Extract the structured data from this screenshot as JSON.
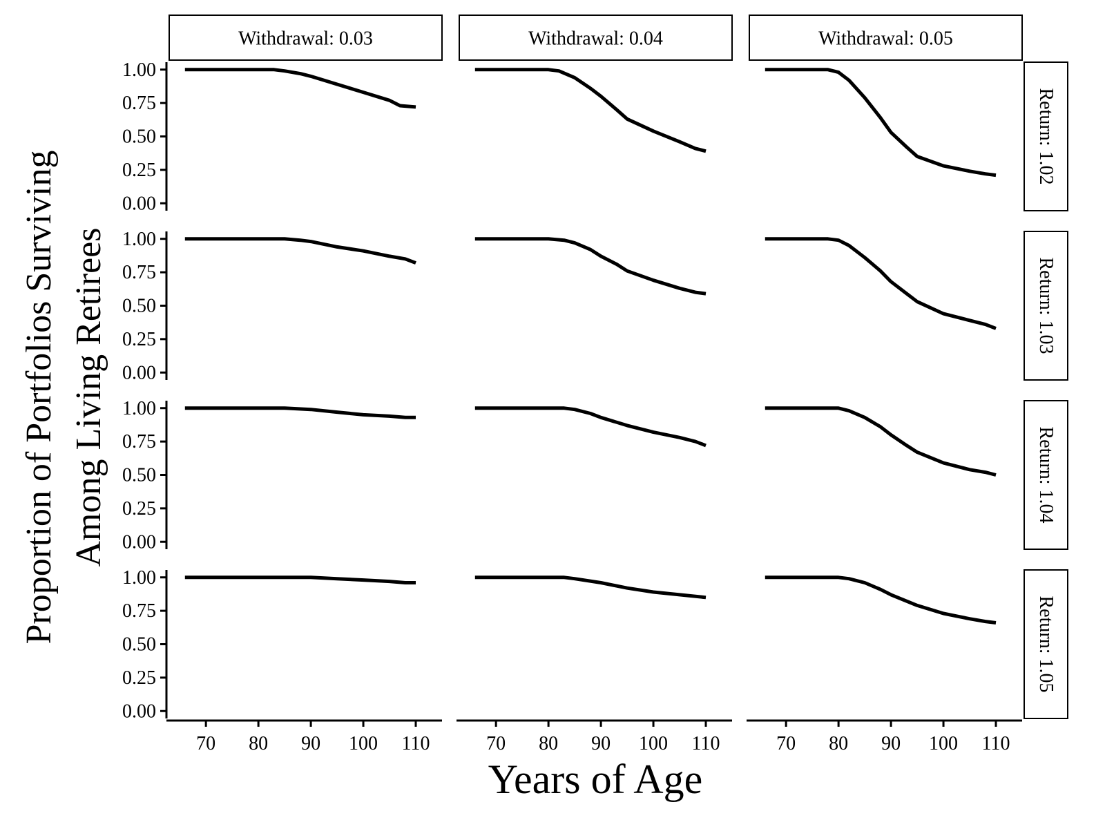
{
  "chart_data": {
    "type": "line",
    "layout": "facet-grid",
    "xlabel": "Years of Age",
    "ylabel_lines": [
      "Proportion of Portfolios Surviving",
      "Among Living Retirees"
    ],
    "xlim": [
      63,
      115
    ],
    "ylim": [
      0,
      1
    ],
    "x_ticks": [
      70,
      80,
      90,
      100,
      110
    ],
    "y_ticks": [
      0,
      0.25,
      0.5,
      0.75,
      1
    ],
    "x_tick_labels": [
      "70",
      "80",
      "90",
      "100",
      "110"
    ],
    "y_tick_labels": [
      "0.00",
      "0.25",
      "0.50",
      "0.75",
      "1.00"
    ],
    "column_facets": [
      "Withdrawal: 0.03",
      "Withdrawal: 0.04",
      "Withdrawal: 0.05"
    ],
    "row_facets": [
      "Return: 1.02",
      "Return: 1.03",
      "Return: 1.04",
      "Return: 1.05"
    ],
    "line_color": "#000000",
    "grid": false,
    "panels": [
      {
        "row": 0,
        "col": 0,
        "x": [
          66,
          70,
          75,
          80,
          83,
          85,
          88,
          90,
          95,
          100,
          105,
          107,
          110
        ],
        "y": [
          1.0,
          1.0,
          1.0,
          1.0,
          1.0,
          0.99,
          0.97,
          0.95,
          0.89,
          0.83,
          0.77,
          0.73,
          0.72
        ]
      },
      {
        "row": 0,
        "col": 1,
        "x": [
          66,
          70,
          75,
          80,
          82,
          85,
          88,
          90,
          93,
          95,
          100,
          105,
          108,
          110
        ],
        "y": [
          1.0,
          1.0,
          1.0,
          1.0,
          0.99,
          0.94,
          0.86,
          0.8,
          0.7,
          0.63,
          0.54,
          0.46,
          0.41,
          0.39
        ]
      },
      {
        "row": 0,
        "col": 2,
        "x": [
          66,
          70,
          75,
          78,
          80,
          82,
          85,
          88,
          90,
          93,
          95,
          100,
          105,
          108,
          110
        ],
        "y": [
          1.0,
          1.0,
          1.0,
          1.0,
          0.98,
          0.92,
          0.79,
          0.64,
          0.53,
          0.42,
          0.35,
          0.28,
          0.24,
          0.22,
          0.21
        ]
      },
      {
        "row": 1,
        "col": 0,
        "x": [
          66,
          70,
          75,
          80,
          85,
          88,
          90,
          95,
          100,
          105,
          108,
          110
        ],
        "y": [
          1.0,
          1.0,
          1.0,
          1.0,
          1.0,
          0.99,
          0.98,
          0.94,
          0.91,
          0.87,
          0.85,
          0.82
        ]
      },
      {
        "row": 1,
        "col": 1,
        "x": [
          66,
          70,
          75,
          80,
          83,
          85,
          88,
          90,
          93,
          95,
          100,
          105,
          108,
          110
        ],
        "y": [
          1.0,
          1.0,
          1.0,
          1.0,
          0.99,
          0.97,
          0.92,
          0.87,
          0.81,
          0.76,
          0.69,
          0.63,
          0.6,
          0.59
        ]
      },
      {
        "row": 1,
        "col": 2,
        "x": [
          66,
          70,
          75,
          78,
          80,
          82,
          85,
          88,
          90,
          93,
          95,
          100,
          105,
          108,
          110
        ],
        "y": [
          1.0,
          1.0,
          1.0,
          1.0,
          0.99,
          0.95,
          0.86,
          0.76,
          0.68,
          0.59,
          0.53,
          0.44,
          0.39,
          0.36,
          0.33
        ]
      },
      {
        "row": 2,
        "col": 0,
        "x": [
          66,
          70,
          75,
          80,
          85,
          90,
          95,
          100,
          105,
          108,
          110
        ],
        "y": [
          1.0,
          1.0,
          1.0,
          1.0,
          1.0,
          0.99,
          0.97,
          0.95,
          0.94,
          0.93,
          0.93
        ]
      },
      {
        "row": 2,
        "col": 1,
        "x": [
          66,
          70,
          75,
          80,
          83,
          85,
          88,
          90,
          95,
          100,
          105,
          108,
          110
        ],
        "y": [
          1.0,
          1.0,
          1.0,
          1.0,
          1.0,
          0.99,
          0.96,
          0.93,
          0.87,
          0.82,
          0.78,
          0.75,
          0.72
        ]
      },
      {
        "row": 2,
        "col": 2,
        "x": [
          66,
          70,
          75,
          78,
          80,
          82,
          85,
          88,
          90,
          93,
          95,
          100,
          105,
          108,
          110
        ],
        "y": [
          1.0,
          1.0,
          1.0,
          1.0,
          1.0,
          0.98,
          0.93,
          0.86,
          0.8,
          0.72,
          0.67,
          0.59,
          0.54,
          0.52,
          0.5
        ]
      },
      {
        "row": 3,
        "col": 0,
        "x": [
          66,
          70,
          75,
          80,
          85,
          90,
          95,
          100,
          105,
          108,
          110
        ],
        "y": [
          1.0,
          1.0,
          1.0,
          1.0,
          1.0,
          1.0,
          0.99,
          0.98,
          0.97,
          0.96,
          0.96
        ]
      },
      {
        "row": 3,
        "col": 1,
        "x": [
          66,
          70,
          75,
          80,
          83,
          85,
          90,
          95,
          100,
          105,
          110
        ],
        "y": [
          1.0,
          1.0,
          1.0,
          1.0,
          1.0,
          0.99,
          0.96,
          0.92,
          0.89,
          0.87,
          0.85
        ]
      },
      {
        "row": 3,
        "col": 2,
        "x": [
          66,
          70,
          75,
          78,
          80,
          82,
          85,
          88,
          90,
          95,
          100,
          105,
          108,
          110
        ],
        "y": [
          1.0,
          1.0,
          1.0,
          1.0,
          1.0,
          0.99,
          0.96,
          0.91,
          0.87,
          0.79,
          0.73,
          0.69,
          0.67,
          0.66
        ]
      }
    ]
  }
}
